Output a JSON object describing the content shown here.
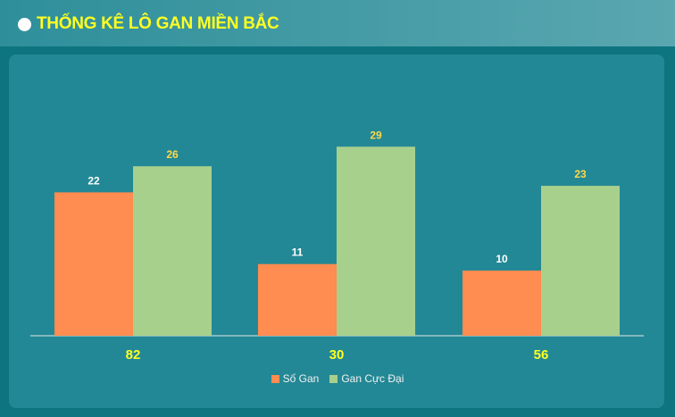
{
  "header": {
    "title": "THỐNG KÊ LÔ GAN MIỀN BẮC"
  },
  "colors": {
    "so_gan": "#ff8c50",
    "gan_cuc_dai": "#a8d08d",
    "value_label_so_gan": "#ffffff",
    "value_label_gan_cuc_dai": "#ffd84a",
    "category_label": "#ffff22"
  },
  "chart_data": {
    "type": "bar",
    "title": "THỐNG KÊ LÔ GAN MIỀN BẮC",
    "xlabel": "",
    "ylabel": "",
    "categories": [
      "82",
      "30",
      "56"
    ],
    "series": [
      {
        "name": "Số Gan",
        "values": [
          22,
          11,
          10
        ]
      },
      {
        "name": "Gan Cực Đại",
        "values": [
          26,
          29,
          23
        ]
      }
    ],
    "ylim": [
      0,
      33
    ],
    "grid": false,
    "legend": "bottom-center",
    "data_labels": true
  },
  "legend": {
    "items": [
      {
        "label": "Số Gan",
        "color": "#ff8c50"
      },
      {
        "label": "Gan Cực Đại",
        "color": "#a8d08d"
      }
    ]
  }
}
